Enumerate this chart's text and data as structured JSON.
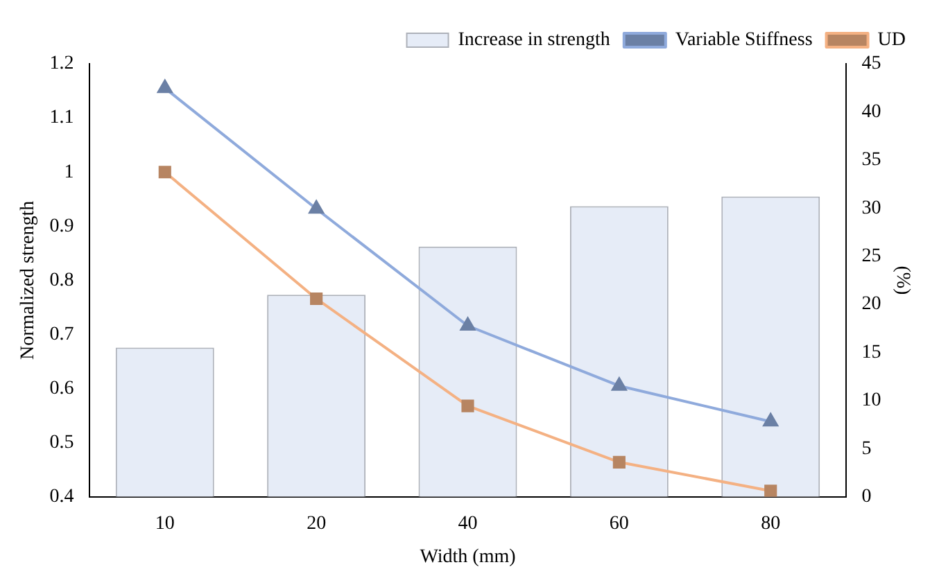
{
  "chart_data": {
    "type": "line",
    "xlabel": "Width (mm)",
    "ylabel": "Normalized strength",
    "y2label": "(%)",
    "categories": [
      "10",
      "20",
      "40",
      "60",
      "80"
    ],
    "series": [
      {
        "name": "Increase in strength",
        "type": "bar",
        "axis": "y2",
        "color": "#e6ecf7",
        "values": [
          15.5,
          21.0,
          26.0,
          30.2,
          31.2
        ]
      },
      {
        "name": "Variable Stiffness",
        "marker": "triangle",
        "color": "#8faadc",
        "values": [
          1.155,
          0.932,
          0.716,
          0.605,
          0.539
        ]
      },
      {
        "name": "UD",
        "marker": "square",
        "color": "#f4b183",
        "values": [
          1.0,
          0.766,
          0.568,
          0.464,
          0.411
        ]
      }
    ],
    "ylim": [
      0.4,
      1.2
    ],
    "yticks": [
      0.4,
      0.5,
      0.6,
      0.7,
      0.8,
      0.9,
      1,
      1.1,
      1.2
    ],
    "y2lim": [
      0,
      45
    ],
    "y2ticks": [
      0,
      5,
      10,
      15,
      20,
      25,
      30,
      35,
      40,
      45
    ],
    "legend": "top right",
    "grid": false
  }
}
